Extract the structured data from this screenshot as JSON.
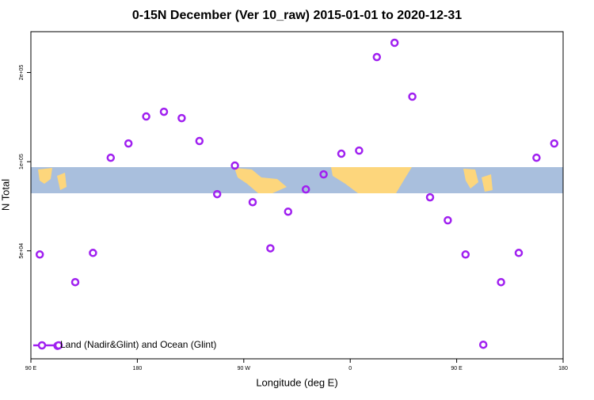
{
  "chart_data": {
    "type": "scatter",
    "title": "0-15N December (Ver 10_raw)   2015-01-01 to 2020-12-31",
    "x_label": "Longitude (deg E)",
    "y_label": "N Total",
    "ylog": true,
    "xlim": [
      90,
      540
    ],
    "ylim": [
      21600,
      274700
    ],
    "xticks": [
      {
        "value": 90,
        "label": "90 E"
      },
      {
        "value": 180,
        "label": "180"
      },
      {
        "value": 270,
        "label": "90 W"
      },
      {
        "value": 360,
        "label": "0"
      },
      {
        "value": 450,
        "label": "90 E"
      },
      {
        "value": 540,
        "label": "180"
      }
    ],
    "yticks": [
      {
        "value": 50000,
        "label": "5e+04"
      },
      {
        "value": 100000,
        "label": "1e+05"
      },
      {
        "value": 200000,
        "label": "2e+05"
      }
    ],
    "legend_position": "bottom-left",
    "series": [
      {
        "name": "Land (Nadir&Glint) and Ocean (Glint)",
        "color": "#a020f0",
        "x": [
          97.5,
          112.5,
          127.5,
          142.5,
          157.5,
          172.5,
          187.5,
          202.5,
          217.5,
          232.5,
          247.5,
          262.5,
          277.5,
          292.5,
          307.5,
          322.5,
          337.5,
          352.5,
          367.5,
          382.5,
          397.5,
          412.5,
          427.5,
          442.5,
          457.5,
          472.5,
          487.5,
          502.5,
          517.5,
          532.5
        ],
        "values": [
          48600,
          23900,
          39200,
          49200,
          103100,
          115200,
          142100,
          147400,
          140300,
          117400,
          77700,
          97000,
          73000,
          51000,
          67800,
          80600,
          90600,
          106400,
          109000,
          225500,
          252000,
          165800,
          75800,
          63400,
          48600,
          24100,
          39200,
          49200,
          103100,
          115200
        ]
      }
    ]
  }
}
